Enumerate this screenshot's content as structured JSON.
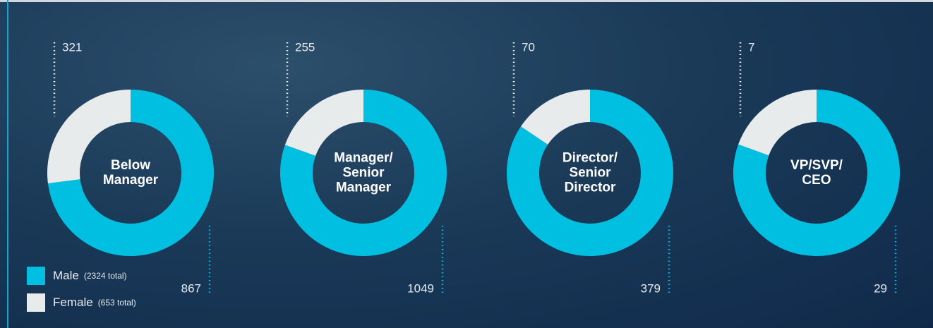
{
  "chart_data": [
    {
      "type": "pie",
      "title": "Below Manager",
      "categories": [
        "Male",
        "Female"
      ],
      "values": [
        867,
        321
      ],
      "colors": [
        "#00bfe0",
        "#e8ebec"
      ]
    },
    {
      "type": "pie",
      "title": "Manager/ Senior Manager",
      "categories": [
        "Male",
        "Female"
      ],
      "values": [
        1049,
        255
      ],
      "colors": [
        "#00bfe0",
        "#e8ebec"
      ]
    },
    {
      "type": "pie",
      "title": "Director/ Senior Director",
      "categories": [
        "Male",
        "Female"
      ],
      "values": [
        379,
        70
      ],
      "colors": [
        "#00bfe0",
        "#e8ebec"
      ]
    },
    {
      "type": "pie",
      "title": "VP/SVP/ CEO",
      "categories": [
        "Male",
        "Female"
      ],
      "values": [
        29,
        7
      ],
      "colors": [
        "#00bfe0",
        "#e8ebec"
      ]
    }
  ],
  "legend": [
    {
      "name": "Male",
      "total_label": "(2324 total)",
      "color": "#00bfe0"
    },
    {
      "name": "Female",
      "total_label": "(653 total)",
      "color": "#e8ebec"
    }
  ]
}
